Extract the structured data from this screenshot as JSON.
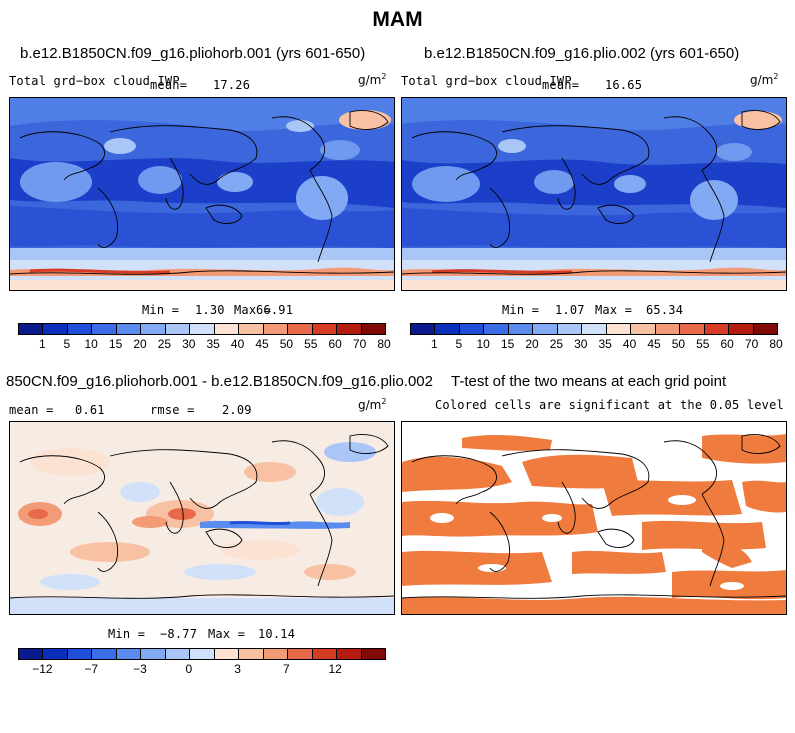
{
  "title": "MAM",
  "palette_abs": [
    "#0a1a8c",
    "#0b2fb8",
    "#1f4fd8",
    "#3a6de6",
    "#5a8cf0",
    "#82aaf4",
    "#a9c6f7",
    "#d2e1fa",
    "#fbe2d2",
    "#f8c1a4",
    "#f39a76",
    "#e8694a",
    "#d63c25",
    "#b41c12",
    "#7f0a06"
  ],
  "palette_diff": [
    "#0a1a8c",
    "#0b2fb8",
    "#1f4fd8",
    "#3a6de6",
    "#5a8cf0",
    "#82aaf4",
    "#a9c6f7",
    "#d2e1fa",
    "#fbe2d2",
    "#f8c1a4",
    "#f39a76",
    "#e8694a",
    "#d63c25",
    "#b41c12",
    "#7f0a06"
  ],
  "sig_color": "#f07b3f",
  "panels": {
    "p1": {
      "title": "b.e12.B1850CN.f09_g16.pliohorb.001 (yrs 601-650)",
      "var": "Total grd−box cloud IWP",
      "mean_label": "mean=",
      "mean": "17.26",
      "units": "g/m",
      "units_exp": "2",
      "min_label": "Min =",
      "min": "1.30",
      "max_label": "Max =",
      "max": "66.91",
      "ticks": [
        "1",
        "5",
        "10",
        "15",
        "20",
        "25",
        "30",
        "35",
        "40",
        "45",
        "50",
        "55",
        "60",
        "70",
        "80"
      ]
    },
    "p2": {
      "title": "b.e12.B1850CN.f09_g16.plio.002 (yrs 601-650)",
      "var": "Total grd−box cloud IWP",
      "mean_label": "mean=",
      "mean": "16.65",
      "units": "g/m",
      "units_exp": "2",
      "min_label": "Min =",
      "min": "1.07",
      "max_label": "Max =",
      "max": "65.34",
      "ticks": [
        "1",
        "5",
        "10",
        "15",
        "20",
        "25",
        "30",
        "35",
        "40",
        "45",
        "50",
        "55",
        "60",
        "70",
        "80"
      ]
    },
    "p3": {
      "title": "850CN.f09_g16.pliohorb.001 - b.e12.B1850CN.f09_g16.plio.002",
      "mean_label": "mean =",
      "mean": "0.61",
      "rmse_label": "rmse =",
      "rmse": "2.09",
      "units": "g/m",
      "units_exp": "2",
      "min_label": "Min =",
      "min": "−8.77",
      "max_label": "Max =",
      "max": "10.14",
      "ticks": [
        "−12",
        "−7",
        "−3",
        "0",
        "3",
        "7",
        "12"
      ]
    },
    "p4": {
      "title": "T-test of the two means at each grid point",
      "subtitle": "Colored cells are significant at the 0.05 level"
    }
  },
  "chart_data": [
    {
      "type": "heatmap",
      "title": "b.e12.B1850CN.f09_g16.pliohorb.001 (yrs 601-650)",
      "variable": "Total grd-box cloud IWP",
      "units": "g/m2",
      "mean": 17.26,
      "min": 1.3,
      "max": 66.91,
      "contour_levels": [
        1,
        5,
        10,
        15,
        20,
        25,
        30,
        35,
        40,
        45,
        50,
        55,
        60,
        70,
        80
      ]
    },
    {
      "type": "heatmap",
      "title": "b.e12.B1850CN.f09_g16.plio.002 (yrs 601-650)",
      "variable": "Total grd-box cloud IWP",
      "units": "g/m2",
      "mean": 16.65,
      "min": 1.07,
      "max": 65.34,
      "contour_levels": [
        1,
        5,
        10,
        15,
        20,
        25,
        30,
        35,
        40,
        45,
        50,
        55,
        60,
        70,
        80
      ]
    },
    {
      "type": "heatmap",
      "title": "850CN.f09_g16.pliohorb.001 - b.e12.B1850CN.f09_g16.plio.002",
      "units": "g/m2",
      "mean": 0.61,
      "rmse": 2.09,
      "min": -8.77,
      "max": 10.14,
      "tick_labels": [
        -12,
        -7,
        -3,
        0,
        3,
        7,
        12
      ]
    },
    {
      "type": "heatmap",
      "title": "T-test of the two means at each grid point",
      "annotation": "Colored cells are significant at the 0.05 level",
      "significance_level": 0.05
    }
  ]
}
